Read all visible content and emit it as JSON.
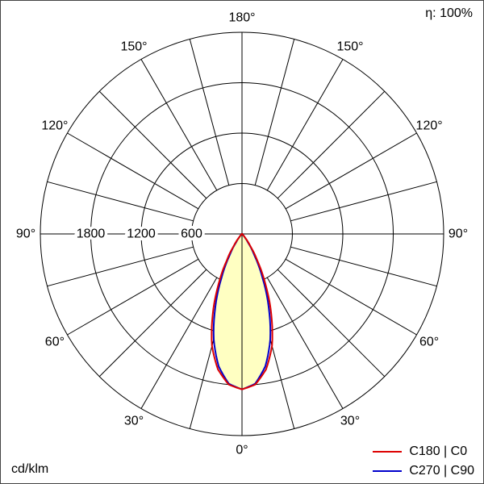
{
  "page": {
    "eta": "η: 100%",
    "unit": "cd/klm"
  },
  "legend": {
    "items": [
      {
        "label": "C180 | C0",
        "color": "#dd0000"
      },
      {
        "label": "C270 | C90",
        "color": "#0000cc"
      }
    ]
  },
  "chart_data": {
    "type": "polar_photometric",
    "unit": "cd/klm",
    "efficiency": "100%",
    "angle_step_deg": 15,
    "angle_labels_deg": [
      0,
      30,
      60,
      90,
      120,
      150,
      180
    ],
    "degree_suffix": "°",
    "radial_ticks": [
      600,
      1200,
      1800
    ],
    "grid_circles": [
      600,
      1200,
      1800,
      2400
    ],
    "r_max": 2400,
    "fill_color": "#ffffc2",
    "gamma_deg": [
      0,
      5,
      10,
      15,
      20,
      25,
      30,
      35,
      40,
      45,
      50,
      55,
      60,
      65,
      70,
      75,
      80,
      85,
      90
    ],
    "series": [
      {
        "name": "C180 | C0",
        "color": "#dd0000",
        "values": [
          1850,
          1800,
          1640,
          1380,
          1020,
          660,
          360,
          160,
          60,
          18,
          6,
          2,
          0,
          0,
          0,
          0,
          0,
          0,
          0
        ]
      },
      {
        "name": "C270 | C90",
        "color": "#0000cc",
        "values": [
          1850,
          1790,
          1600,
          1300,
          930,
          580,
          300,
          125,
          42,
          12,
          4,
          1,
          0,
          0,
          0,
          0,
          0,
          0,
          0
        ]
      }
    ]
  }
}
